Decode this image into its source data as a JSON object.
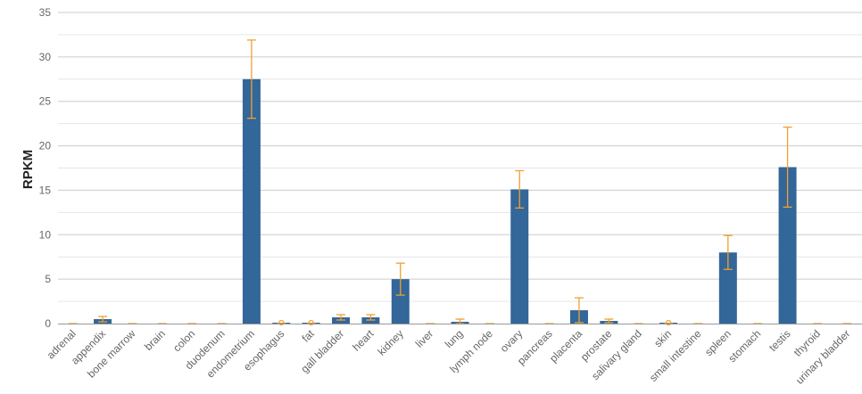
{
  "chart_data": {
    "type": "bar",
    "ylabel": "RPKM",
    "ylim": [
      0,
      35
    ],
    "yticks": [
      0,
      5,
      10,
      15,
      20,
      25,
      30,
      35
    ],
    "grid": true,
    "error_bars": true,
    "colors": {
      "bar": "#336699",
      "error": "#f0a030",
      "grid": "#cccccc",
      "minor_grid": "#e6e6e6",
      "axis": "#999999"
    },
    "categories": [
      "adrenal",
      "appendix",
      "bone marrow",
      "brain",
      "colon",
      "duodenum",
      "endometrium",
      "esophagus",
      "fat",
      "gall bladder",
      "heart",
      "kidney",
      "liver",
      "lung",
      "lymph node",
      "ovary",
      "pancreas",
      "placenta",
      "prostate",
      "salivary gland",
      "skin",
      "small intestine",
      "spleen",
      "stomach",
      "testis",
      "thyroid",
      "urinary bladder"
    ],
    "values": [
      0.0,
      0.5,
      0.0,
      0.0,
      0.0,
      0.0,
      27.5,
      0.1,
      0.1,
      0.7,
      0.7,
      5.0,
      0.0,
      0.2,
      0.0,
      15.1,
      0.0,
      1.5,
      0.3,
      0.0,
      0.1,
      0.0,
      8.0,
      0.0,
      17.6,
      0.0,
      0.0
    ],
    "errors": [
      0.0,
      0.3,
      0.0,
      0.0,
      0.0,
      0.0,
      4.4,
      0.1,
      0.1,
      0.3,
      0.3,
      1.8,
      0.0,
      0.3,
      0.0,
      2.1,
      0.0,
      1.4,
      0.2,
      0.0,
      0.1,
      0.0,
      1.9,
      0.0,
      4.5,
      0.0,
      0.0
    ]
  }
}
